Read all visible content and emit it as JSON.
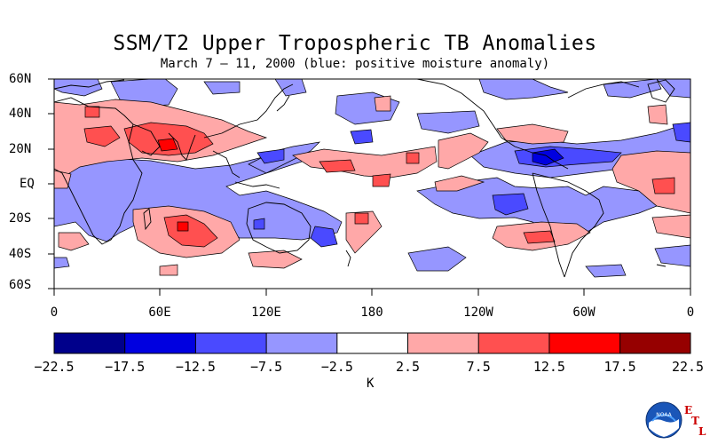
{
  "title": "SSM/T2 Upper Tropospheric TB Anomalies",
  "subtitle": "March 7 – 11, 2000 (blue: positive moisture anomaly)",
  "lat_labels": [
    "60N",
    "40N",
    "20N",
    "EQ",
    "20S",
    "40S",
    "60S"
  ],
  "lon_labels": [
    "0",
    "60E",
    "120E",
    "180",
    "120W",
    "60W",
    "0"
  ],
  "colorbar": {
    "ticks": [
      "−22.5",
      "−17.5",
      "−12.5",
      "−7.5",
      "−2.5",
      "2.5",
      "7.5",
      "12.5",
      "17.5",
      "22.5"
    ],
    "colors": [
      "#00008b",
      "#0000e0",
      "#4a4aff",
      "#9696ff",
      "#ffffff",
      "#ffa8a8",
      "#ff5050",
      "#ff0000",
      "#960000"
    ],
    "unit": "K"
  },
  "logo": {
    "name": "NOAA",
    "etl_letters": [
      "E",
      "T",
      "L"
    ]
  }
}
